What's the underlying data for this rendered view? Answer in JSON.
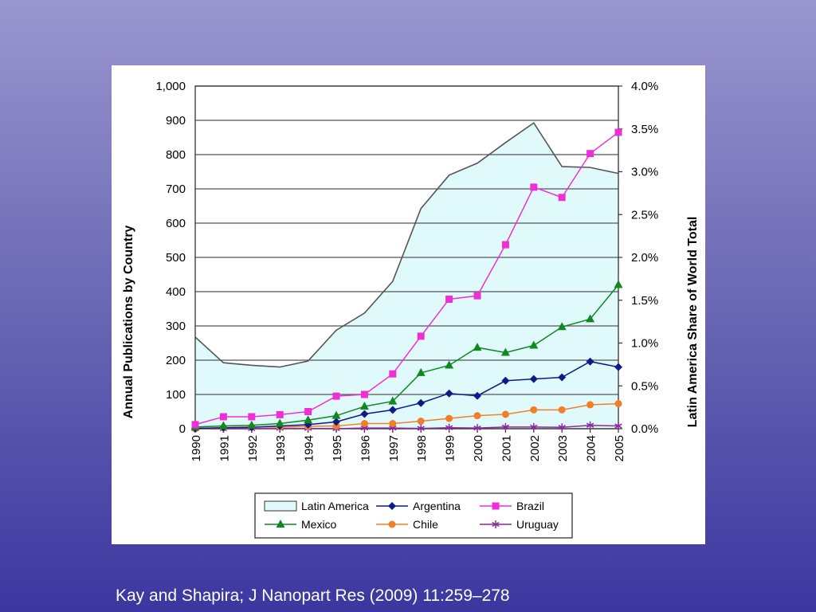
{
  "citation": "Kay and Shapira; J Nanopart Res (2009) 11:259–278",
  "chart_data": {
    "type": "line",
    "title": "",
    "ylabel": "Annual Publications by Country",
    "y2label": "Latin America Share of World Total",
    "x": [
      "1990",
      "1991",
      "1992",
      "1993",
      "1994",
      "1995",
      "1996",
      "1997",
      "1998",
      "1999",
      "2000",
      "2001",
      "2002",
      "2003",
      "2004",
      "2005"
    ],
    "ylim": [
      0,
      1000
    ],
    "yticks": [
      "0",
      "100",
      "200",
      "300",
      "400",
      "500",
      "600",
      "700",
      "800",
      "900",
      "1,000"
    ],
    "y2lim": [
      0,
      4.0
    ],
    "y2ticks": [
      "0.0%",
      "0.5%",
      "1.0%",
      "1.5%",
      "2.0%",
      "2.5%",
      "3.0%",
      "3.5%",
      "4.0%"
    ],
    "grid": "horizontal",
    "legend_position": "bottom",
    "series": [
      {
        "name": "Latin America",
        "type": "area",
        "axis": "right",
        "color": "#e0fafc",
        "stroke": "#555555",
        "values": [
          1.07,
          0.77,
          0.74,
          0.72,
          0.79,
          1.15,
          1.35,
          1.72,
          2.57,
          2.96,
          3.1,
          3.34,
          3.57,
          3.06,
          3.05,
          2.98
        ]
      },
      {
        "name": "Argentina",
        "type": "line",
        "marker": "diamond",
        "color": "#0d1a8a",
        "values": [
          1,
          3,
          4,
          8,
          12,
          20,
          43,
          55,
          75,
          103,
          96,
          140,
          145,
          150,
          196,
          180
        ]
      },
      {
        "name": "Brazil",
        "type": "line",
        "marker": "square",
        "color": "#ee2fd6",
        "values": [
          12,
          35,
          35,
          41,
          50,
          95,
          100,
          160,
          270,
          378,
          388,
          537,
          705,
          675,
          803,
          865
        ]
      },
      {
        "name": "Mexico",
        "type": "line",
        "marker": "triangle",
        "color": "#11871f",
        "values": [
          5,
          8,
          10,
          15,
          25,
          38,
          65,
          80,
          163,
          185,
          237,
          222,
          243,
          297,
          320,
          420
        ]
      },
      {
        "name": "Chile",
        "type": "line",
        "marker": "circle",
        "color": "#f07f28",
        "values": [
          0,
          3,
          5,
          5,
          7,
          8,
          15,
          15,
          22,
          30,
          38,
          42,
          55,
          55,
          70,
          73
        ]
      },
      {
        "name": "Uruguay",
        "type": "line",
        "marker": "star",
        "color": "#8a2a9c",
        "values": [
          0,
          0,
          0,
          1,
          1,
          0,
          2,
          2,
          1,
          3,
          2,
          5,
          5,
          4,
          10,
          8
        ]
      }
    ]
  }
}
